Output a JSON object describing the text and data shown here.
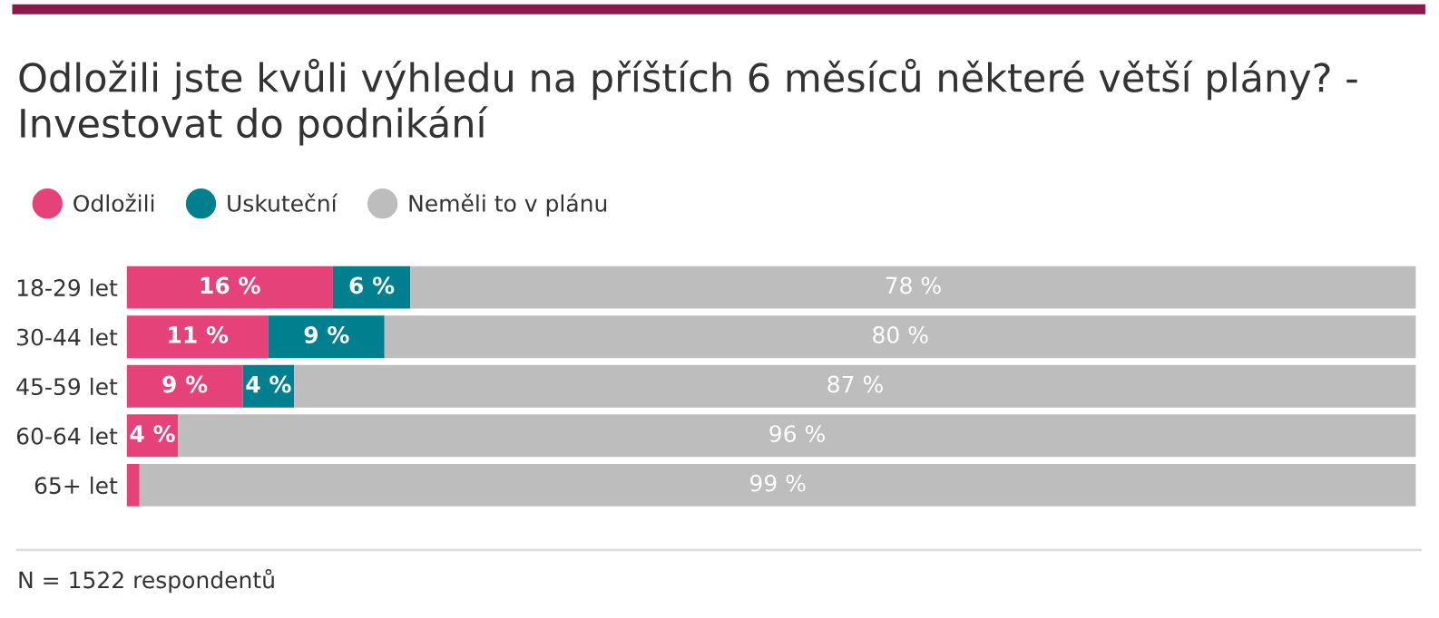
{
  "chart_data": {
    "type": "bar",
    "orientation": "horizontal",
    "stacked": true,
    "title": "Odložili jste kvůli výhledu na příštích 6 měsíců některé větší plány? - Investovat do podnikání",
    "categories": [
      "18-29 let",
      "30-44 let",
      "45-59 let",
      "60-64 let",
      "65+ let"
    ],
    "series": [
      {
        "name": "Odložili",
        "color": "#e6427a",
        "values": [
          16,
          11,
          9,
          4,
          1
        ],
        "value_labels": [
          "16 %",
          "11 %",
          "9 %",
          "4 %",
          null
        ]
      },
      {
        "name": "Uskuteční",
        "color": "#00808f",
        "values": [
          6,
          9,
          4,
          0,
          0
        ],
        "value_labels": [
          "6 %",
          "9 %",
          "4 %",
          null,
          null
        ]
      },
      {
        "name": "Neměli to v plánu",
        "color": "#bdbdbd",
        "values": [
          78,
          80,
          87,
          96,
          99
        ],
        "value_labels": [
          "78 %",
          "80 %",
          "87 %",
          "96 %",
          "99 %"
        ]
      }
    ],
    "xlim": [
      0,
      100
    ],
    "tick_labels": "y",
    "grid": false,
    "legend": "top left",
    "annotations": [
      "N = 1522 respondentů"
    ]
  }
}
